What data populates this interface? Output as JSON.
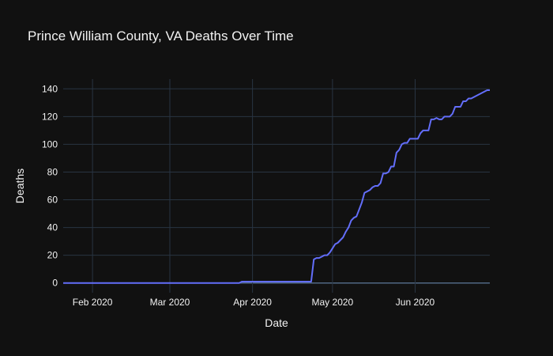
{
  "chart_data": {
    "type": "line",
    "title": "Prince William County, VA Deaths Over Time",
    "xlabel": "Date",
    "ylabel": "Deaths",
    "x_ticks": [
      "Feb 2020",
      "Mar 2020",
      "Apr 2020",
      "May 2020",
      "Jun 2020"
    ],
    "y_ticks": [
      0,
      20,
      40,
      60,
      80,
      100,
      120,
      140
    ],
    "ylim": [
      -7,
      147
    ],
    "xlim": [
      "2020-01-21",
      "2020-06-29"
    ],
    "grid": true,
    "colors": {
      "background": "#111111",
      "line": "#636efa",
      "grid": "#283442",
      "zero_line": "#506784"
    },
    "series": [
      {
        "x": [
          "2020-01-21",
          "2020-03-27",
          "2020-03-28",
          "2020-04-23",
          "2020-04-24",
          "2020-04-25",
          "2020-04-26",
          "2020-04-27",
          "2020-04-28",
          "2020-04-29",
          "2020-04-30",
          "2020-05-01",
          "2020-05-02",
          "2020-05-03",
          "2020-05-04",
          "2020-05-05",
          "2020-05-06",
          "2020-05-07",
          "2020-05-08",
          "2020-05-09",
          "2020-05-10",
          "2020-05-11",
          "2020-05-12",
          "2020-05-13",
          "2020-05-14",
          "2020-05-15",
          "2020-05-16",
          "2020-05-17",
          "2020-05-18",
          "2020-05-19",
          "2020-05-20",
          "2020-05-21",
          "2020-05-22",
          "2020-05-23",
          "2020-05-24",
          "2020-05-25",
          "2020-05-26",
          "2020-05-27",
          "2020-05-28",
          "2020-05-29",
          "2020-05-30",
          "2020-05-31",
          "2020-06-01",
          "2020-06-02",
          "2020-06-03",
          "2020-06-04",
          "2020-06-05",
          "2020-06-06",
          "2020-06-07",
          "2020-06-08",
          "2020-06-09",
          "2020-06-10",
          "2020-06-11",
          "2020-06-12",
          "2020-06-13",
          "2020-06-14",
          "2020-06-15",
          "2020-06-16",
          "2020-06-17",
          "2020-06-18",
          "2020-06-19",
          "2020-06-20",
          "2020-06-21",
          "2020-06-22",
          "2020-06-23",
          "2020-06-24",
          "2020-06-25",
          "2020-06-26",
          "2020-06-27",
          "2020-06-28",
          "2020-06-29"
        ],
        "values": [
          0,
          0,
          1,
          1,
          17,
          18,
          18,
          19,
          20,
          20,
          22,
          25,
          28,
          29,
          31,
          33,
          37,
          40,
          45,
          47,
          48,
          53,
          58,
          65,
          66,
          67,
          69,
          70,
          70,
          72,
          79,
          79,
          80,
          84,
          84,
          94,
          96,
          100,
          101,
          101,
          104,
          104,
          104,
          104,
          108,
          110,
          110,
          110,
          118,
          118,
          119,
          118,
          118,
          120,
          120,
          120,
          122,
          127,
          127,
          127,
          131,
          131,
          133,
          133,
          134,
          135,
          136,
          137,
          138,
          139,
          139
        ]
      }
    ]
  }
}
